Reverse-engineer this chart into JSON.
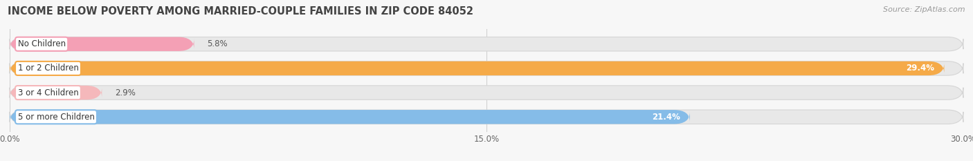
{
  "title": "INCOME BELOW POVERTY AMONG MARRIED-COUPLE FAMILIES IN ZIP CODE 84052",
  "source": "Source: ZipAtlas.com",
  "categories": [
    "No Children",
    "1 or 2 Children",
    "3 or 4 Children",
    "5 or more Children"
  ],
  "values": [
    5.8,
    29.4,
    2.9,
    21.4
  ],
  "bar_colors": [
    "#f4a0b5",
    "#f5aa48",
    "#f5b8bb",
    "#85bce8"
  ],
  "label_border_colors": [
    "#f4a0b5",
    "#f5aa48",
    "#f5b8bb",
    "#85bce8"
  ],
  "value_inside": [
    false,
    true,
    false,
    true
  ],
  "xlim": [
    0,
    30.0
  ],
  "xticks": [
    0.0,
    15.0,
    30.0
  ],
  "xtick_labels": [
    "0.0%",
    "15.0%",
    "30.0%"
  ],
  "background_color": "#f7f7f7",
  "bar_bg_color": "#e8e8e8",
  "title_fontsize": 10.5,
  "bar_height": 0.58,
  "label_fontsize": 8.5,
  "value_fontsize": 8.5,
  "source_fontsize": 8.0,
  "inside_threshold": 10.0
}
